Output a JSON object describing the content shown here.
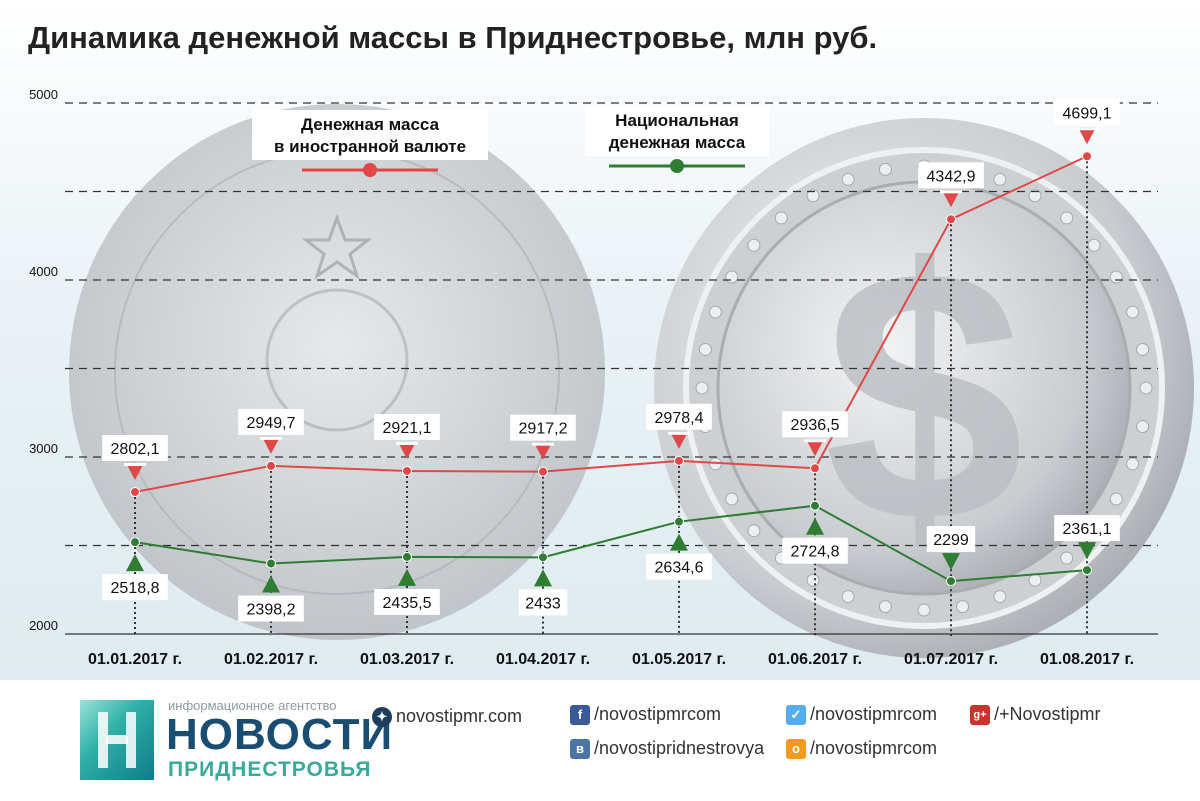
{
  "title": "Динамика денежной массы в Приднестровье, млн руб.",
  "colors": {
    "foreign": "#e04848",
    "national": "#2e7d32",
    "grid": "#333333"
  },
  "chart_data": {
    "type": "line",
    "categories": [
      "01.01.2017 г.",
      "01.02.2017 г.",
      "01.03.2017 г.",
      "01.04.2017 г.",
      "01.05.2017 г.",
      "01.06.2017 г.",
      "01.07.2017 г.",
      "01.08.2017 г."
    ],
    "ylim": [
      2000,
      5000
    ],
    "y_ticks": [
      "2000",
      "3000",
      "4000",
      "5000"
    ],
    "grid": true,
    "legend_position": "top",
    "series": [
      {
        "name": "Денежная масса\nв иностранной валюте",
        "values": [
          2802.1,
          2949.7,
          2921.1,
          2917.2,
          2978.4,
          2936.5,
          4342.9,
          4699.1
        ],
        "labels": [
          "2802,1",
          "2949,7",
          "2921,1",
          "2917,2",
          "2978,4",
          "2936,5",
          "4342,9",
          "4699,1"
        ]
      },
      {
        "name": "Национальная\nденежная масса",
        "values": [
          2518.8,
          2398.2,
          2435.5,
          2433,
          2634.6,
          2724.8,
          2299,
          2361.1
        ],
        "labels": [
          "2518,8",
          "2398,2",
          "2435,5",
          "2433",
          "2634,6",
          "2724,8",
          "2299",
          "2361,1"
        ]
      }
    ]
  },
  "footer": {
    "logo_tagline": "информационное агентство",
    "logo_title": "НОВОСТИ",
    "logo_subtitle": "ПРИДНЕСТРОВЬЯ",
    "site": "novostipmr.com",
    "facebook": "/novostipmrcom",
    "vk": "/novostipridnestrovya",
    "twitter": "/novostipmrcom",
    "odnoklassniki": "/novostipmrcom",
    "gplus": "/+Novostipmr",
    "gplus_icon": "g+",
    "fb_icon": "f",
    "vk_icon": "в",
    "ok_icon": "о"
  }
}
